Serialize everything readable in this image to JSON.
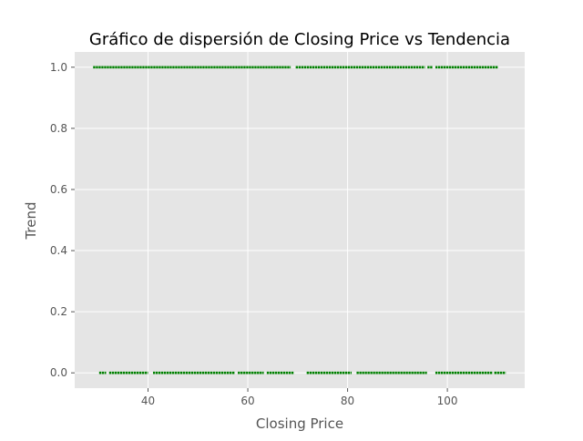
{
  "chart_data": {
    "type": "scatter",
    "title": "Gráfico de dispersión de Closing Price vs Tendencia",
    "xlabel": "Closing Price",
    "ylabel": "Trend",
    "xlim": [
      25.3,
      115.5
    ],
    "ylim": [
      -0.05,
      1.05
    ],
    "xticks": [
      40,
      60,
      80,
      100
    ],
    "yticks": [
      0.0,
      0.2,
      0.4,
      0.6,
      0.8,
      1.0
    ],
    "xtick_labels": [
      "40",
      "60",
      "80",
      "100"
    ],
    "ytick_labels": [
      "0.0",
      "0.2",
      "0.4",
      "0.6",
      "0.8",
      "1.0"
    ],
    "grid": true,
    "colors": {
      "points": "#008000",
      "plot_bg": "#e5e5e5",
      "grid": "#ffffff",
      "text": "#555555",
      "title": "#000000"
    },
    "series": [
      {
        "y": 1.0,
        "x_ranges": [
          [
            29.0,
            68.6
          ],
          [
            69.6,
            95.5
          ],
          [
            96.0,
            97.0
          ],
          [
            97.6,
            110.2
          ]
        ]
      },
      {
        "y": 0.0,
        "x_ranges": [
          [
            30.2,
            31.6
          ],
          [
            32.2,
            40.0
          ],
          [
            41.0,
            57.4
          ],
          [
            58.0,
            63.2
          ],
          [
            63.8,
            69.2
          ],
          [
            71.8,
            80.8
          ],
          [
            81.8,
            95.9
          ],
          [
            97.6,
            109.0
          ],
          [
            109.4,
            111.7
          ]
        ]
      }
    ]
  }
}
